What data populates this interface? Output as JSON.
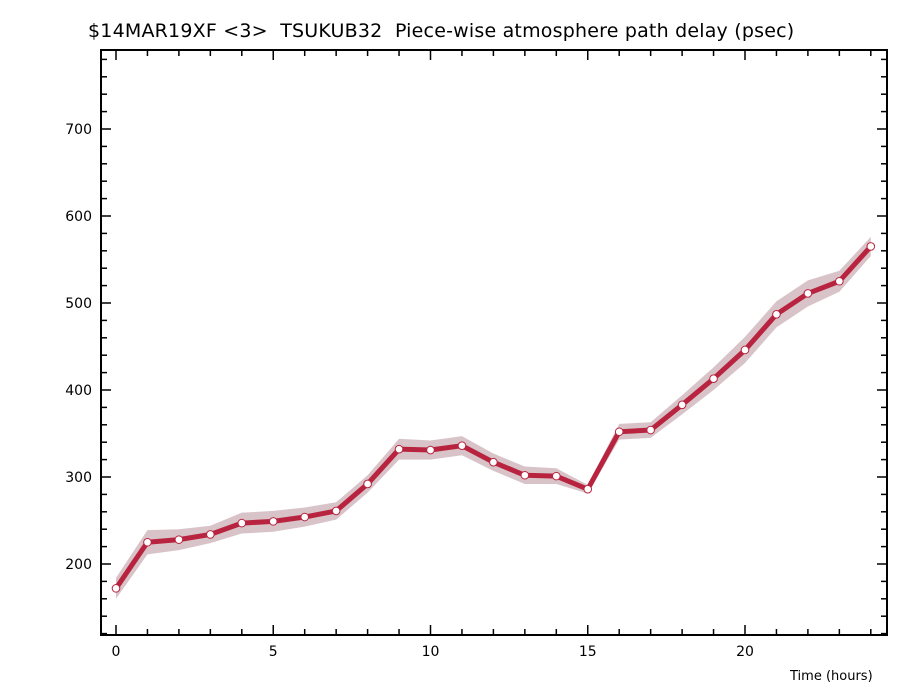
{
  "chart_data": {
    "type": "line",
    "title": "$14MAR19XF <3>  TSUKUB32  Piece-wise atmosphere path delay (psec)",
    "xlabel": "Time (hours)",
    "ylabel": "",
    "xlim": [
      -0.5,
      24.5
    ],
    "ylim": [
      118,
      790
    ],
    "xticks": [
      0,
      5,
      10,
      15,
      20
    ],
    "yticks": [
      200,
      300,
      400,
      500,
      600,
      700
    ],
    "grid": false,
    "series": [
      {
        "name": "path delay",
        "color": "#b8243f",
        "band_color": "#d8c4c8",
        "x": [
          0,
          1,
          2,
          3,
          4,
          5,
          6,
          7,
          8,
          9,
          10,
          11,
          12,
          13,
          14,
          15,
          16,
          17,
          18,
          19,
          20,
          21,
          22,
          23,
          24
        ],
        "y": [
          172,
          225,
          228,
          234,
          247,
          249,
          254,
          261,
          292,
          332,
          331,
          336,
          317,
          302,
          301,
          286,
          352,
          354,
          383,
          413,
          446,
          487,
          511,
          525,
          565
        ],
        "err": [
          12,
          14,
          12,
          10,
          12,
          12,
          11,
          10,
          10,
          12,
          11,
          11,
          10,
          10,
          9,
          5,
          9,
          9,
          11,
          13,
          15,
          15,
          15,
          12,
          11
        ]
      }
    ]
  }
}
